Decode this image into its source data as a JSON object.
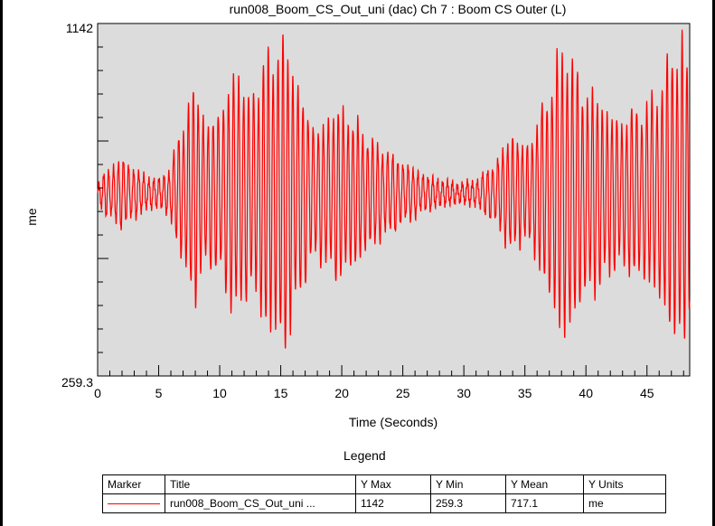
{
  "chart_data": {
    "type": "line",
    "title": "run008_Boom_CS_Out_uni (dac)  Ch 7 : Boom CS Outer (L)",
    "xlabel": "Time (Seconds)",
    "ylabel": "me",
    "xlim": [
      0,
      48.5
    ],
    "ylim": [
      259.3,
      1142
    ],
    "x_ticks": [
      0,
      5,
      10,
      15,
      20,
      25,
      30,
      35,
      40,
      45
    ],
    "y_tick_labels": [
      "1142",
      "259.3"
    ],
    "plot_background": "#dcdcdc",
    "line_color": "#ff0000",
    "grid": false,
    "series": [
      {
        "name": "run008_Boom_CS_Out_uni ...",
        "oscillation_frequency_hz": 2.45,
        "center": 717.1,
        "envelope": [
          {
            "t": 0,
            "a": 15
          },
          {
            "t": 0.6,
            "a": 60
          },
          {
            "t": 2,
            "a": 95
          },
          {
            "t": 3.5,
            "a": 55
          },
          {
            "t": 5,
            "a": 35
          },
          {
            "t": 6,
            "a": 75
          },
          {
            "t": 7,
            "a": 205
          },
          {
            "t": 8,
            "a": 300
          },
          {
            "t": 9,
            "a": 185
          },
          {
            "t": 10,
            "a": 230
          },
          {
            "t": 11.5,
            "a": 355
          },
          {
            "t": 12.5,
            "a": 250
          },
          {
            "t": 13.5,
            "a": 360
          },
          {
            "t": 15,
            "a": 425
          },
          {
            "t": 15.8,
            "a": 395
          },
          {
            "t": 16.6,
            "a": 270
          },
          {
            "t": 18,
            "a": 170
          },
          {
            "t": 19.5,
            "a": 240
          },
          {
            "t": 20.8,
            "a": 210
          },
          {
            "t": 22.5,
            "a": 145
          },
          {
            "t": 25,
            "a": 85
          },
          {
            "t": 27,
            "a": 45
          },
          {
            "t": 29.5,
            "a": 25
          },
          {
            "t": 31,
            "a": 35
          },
          {
            "t": 32.5,
            "a": 80
          },
          {
            "t": 34,
            "a": 170
          },
          {
            "t": 35,
            "a": 120
          },
          {
            "t": 36.3,
            "a": 220
          },
          {
            "t": 37.8,
            "a": 380
          },
          {
            "t": 38.5,
            "a": 420
          },
          {
            "t": 39.5,
            "a": 300
          },
          {
            "t": 41,
            "a": 270
          },
          {
            "t": 42.5,
            "a": 200
          },
          {
            "t": 44,
            "a": 230
          },
          {
            "t": 45.5,
            "a": 260
          },
          {
            "t": 47.2,
            "a": 400
          },
          {
            "t": 48,
            "a": 440
          },
          {
            "t": 48.5,
            "a": 300
          }
        ]
      }
    ]
  },
  "legend": {
    "title": "Legend",
    "columns": [
      "Marker",
      "Title",
      "Y Max",
      "Y Min",
      "Y Mean",
      "Y Units"
    ],
    "rows": [
      {
        "title": "run008_Boom_CS_Out_uni ...",
        "y_max": "1142",
        "y_min": "259.3",
        "y_mean": "717.1",
        "y_units": "me"
      }
    ]
  }
}
